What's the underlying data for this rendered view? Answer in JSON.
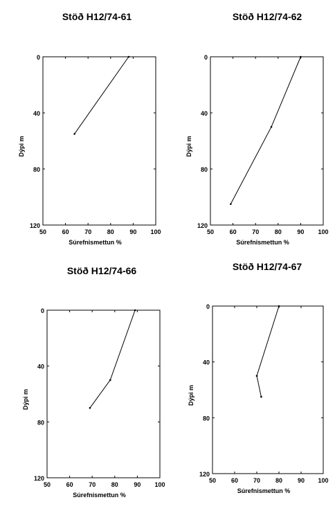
{
  "chart_data": [
    {
      "type": "line",
      "title": "Stöð H12/74-61",
      "xlabel": "Súrefnismettun %",
      "ylabel": "Dýpi m",
      "xlim": [
        50,
        100
      ],
      "ylim": [
        0,
        120
      ],
      "y_inverted": true,
      "xticks": [
        "50",
        "60",
        "70",
        "80",
        "90",
        "100"
      ],
      "yticks": [
        "0",
        "40",
        "80",
        "120"
      ],
      "grid": false,
      "series": [
        {
          "x": [
            88,
            64
          ],
          "y": [
            0,
            55
          ]
        }
      ]
    },
    {
      "type": "line",
      "title": "Stöð H12/74-62",
      "xlabel": "Súrefnismettun %",
      "ylabel": "Dýpi m",
      "xlim": [
        50,
        100
      ],
      "ylim": [
        0,
        120
      ],
      "y_inverted": true,
      "xticks": [
        "50",
        "60",
        "70",
        "80",
        "90",
        "100"
      ],
      "yticks": [
        "0",
        "40",
        "80",
        "120"
      ],
      "grid": false,
      "series": [
        {
          "x": [
            90,
            77,
            59
          ],
          "y": [
            0,
            50,
            105
          ]
        }
      ]
    },
    {
      "type": "line",
      "title": "Stöð H12/74-66",
      "xlabel": "Súrefnismettun %",
      "ylabel": "Dýpi m",
      "xlim": [
        50,
        100
      ],
      "ylim": [
        0,
        120
      ],
      "y_inverted": true,
      "xticks": [
        "50",
        "60",
        "70",
        "80",
        "90",
        "100"
      ],
      "yticks": [
        "0",
        "40",
        "80",
        "120"
      ],
      "grid": false,
      "series": [
        {
          "x": [
            89,
            78,
            69
          ],
          "y": [
            0,
            50,
            70
          ]
        }
      ]
    },
    {
      "type": "line",
      "title": "Stöð H12/74-67",
      "xlabel": "Súrefnismettun %",
      "ylabel": "Dýpi m",
      "xlim": [
        50,
        100
      ],
      "ylim": [
        0,
        120
      ],
      "y_inverted": true,
      "xticks": [
        "50",
        "60",
        "70",
        "80",
        "90",
        "100"
      ],
      "yticks": [
        "0",
        "40",
        "80",
        "120"
      ],
      "grid": false,
      "series": [
        {
          "x": [
            80,
            70,
            72
          ],
          "y": [
            0,
            50,
            65
          ]
        }
      ]
    }
  ]
}
